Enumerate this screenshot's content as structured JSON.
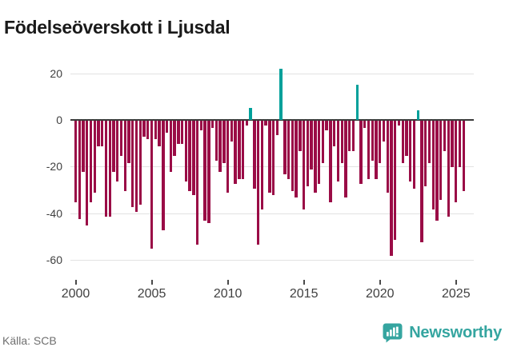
{
  "header": {
    "title": "Födelseöverskott i Ljusdal"
  },
  "footer": {
    "source": "Källa: SCB",
    "logo_text": "Newsworthy"
  },
  "icons": {
    "logo_icon": "speech-bubble-bar-chart"
  },
  "colors": {
    "negative_bar": "#9a0c46",
    "positive_bar": "#00a09a",
    "logo": "#35a5a0",
    "grid": "#e2e2e2",
    "zero_line": "#3a3a3a",
    "axis_text": "#404040",
    "title_text": "#1a1a1a",
    "source_text": "#6f6f6f"
  },
  "chart_data": {
    "type": "bar",
    "title": "Födelseöverskott i Ljusdal",
    "xlabel": "",
    "ylabel": "",
    "ylim": [
      -62,
      24
    ],
    "grid": true,
    "zero_line": true,
    "y_tick_labels": [
      "20",
      "0",
      "-20",
      "-40",
      "-60"
    ],
    "y_tick_values": [
      20,
      0,
      -20,
      -40,
      -60
    ],
    "x_tick_labels": [
      "2000",
      "2005",
      "2010",
      "2015",
      "2020",
      "2025"
    ],
    "x_tick_years": [
      2000,
      2005,
      2010,
      2015,
      2020,
      2025
    ],
    "categories": [
      "2000Q1",
      "2000Q2",
      "2000Q3",
      "2000Q4",
      "2001Q1",
      "2001Q2",
      "2001Q3",
      "2001Q4",
      "2002Q1",
      "2002Q2",
      "2002Q3",
      "2002Q4",
      "2003Q1",
      "2003Q2",
      "2003Q3",
      "2003Q4",
      "2004Q1",
      "2004Q2",
      "2004Q3",
      "2004Q4",
      "2005Q1",
      "2005Q2",
      "2005Q3",
      "2005Q4",
      "2006Q1",
      "2006Q2",
      "2006Q3",
      "2006Q4",
      "2007Q1",
      "2007Q2",
      "2007Q3",
      "2007Q4",
      "2008Q1",
      "2008Q2",
      "2008Q3",
      "2008Q4",
      "2009Q1",
      "2009Q2",
      "2009Q3",
      "2009Q4",
      "2010Q1",
      "2010Q2",
      "2010Q3",
      "2010Q4",
      "2011Q1",
      "2011Q2",
      "2011Q3",
      "2011Q4",
      "2012Q1",
      "2012Q2",
      "2012Q3",
      "2012Q4",
      "2013Q1",
      "2013Q2",
      "2013Q3",
      "2013Q4",
      "2014Q1",
      "2014Q2",
      "2014Q3",
      "2014Q4",
      "2015Q1",
      "2015Q2",
      "2015Q3",
      "2015Q4",
      "2016Q1",
      "2016Q2",
      "2016Q3",
      "2016Q4",
      "2017Q1",
      "2017Q2",
      "2017Q3",
      "2017Q4",
      "2018Q1",
      "2018Q2",
      "2018Q3",
      "2018Q4",
      "2019Q1",
      "2019Q2",
      "2019Q3",
      "2019Q4",
      "2020Q1",
      "2020Q2",
      "2020Q3",
      "2020Q4",
      "2021Q1",
      "2021Q2",
      "2021Q3",
      "2021Q4",
      "2022Q1",
      "2022Q2",
      "2022Q3",
      "2022Q4",
      "2023Q1",
      "2023Q2",
      "2023Q3",
      "2023Q4",
      "2024Q1",
      "2024Q2",
      "2024Q3",
      "2024Q4",
      "2025Q1",
      "2025Q2",
      "2025Q3"
    ],
    "values": [
      -35,
      -42,
      -22,
      -45,
      -35,
      -31,
      -11,
      -11,
      -41,
      -41,
      -22,
      -26,
      -15,
      -30,
      -18,
      -37,
      -39,
      -36,
      -7,
      -8,
      -55,
      -8,
      -11,
      -47,
      -5,
      -22,
      -15,
      -10,
      -10,
      -26,
      -30,
      -32,
      -53,
      -4,
      -43,
      -44,
      -3,
      -17,
      -22,
      -18,
      -31,
      -9,
      -27,
      -25,
      -25,
      -2,
      5,
      -29,
      -53,
      -38,
      -2,
      -31,
      -32,
      -6,
      22,
      -23,
      -25,
      -30,
      -33,
      -13,
      -38,
      -28,
      -21,
      -31,
      -27,
      -18,
      -4,
      -35,
      -11,
      -26,
      -18,
      -33,
      -13,
      -13,
      15,
      -27,
      -3,
      -25,
      -17,
      -25,
      -18,
      -9,
      -31,
      -58,
      -51,
      -2,
      -18,
      -15,
      -26,
      -29,
      4,
      -52,
      -28,
      -18,
      -38,
      -43,
      -34,
      -13,
      -41,
      -20,
      -35,
      -20,
      -30
    ]
  }
}
